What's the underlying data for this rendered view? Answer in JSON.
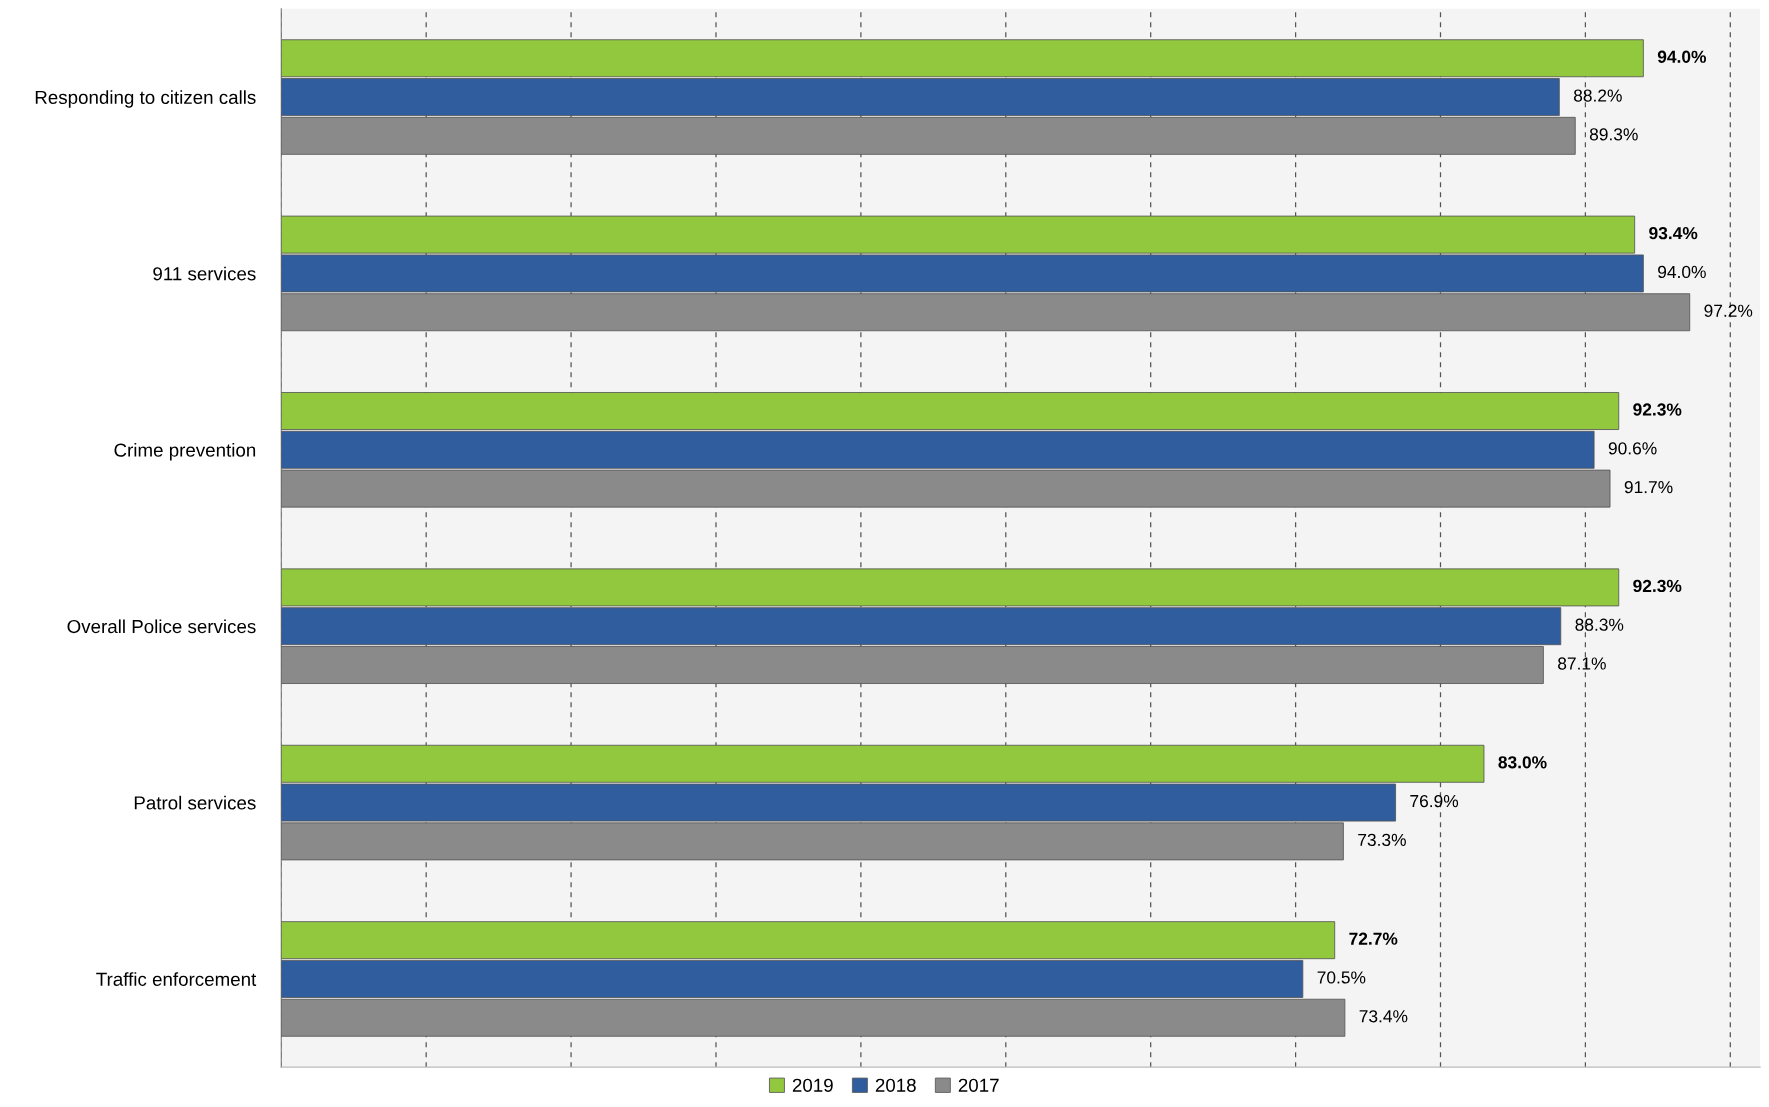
{
  "chart_data": {
    "type": "bar",
    "orientation": "horizontal",
    "categories": [
      "Responding to citizen calls",
      "911 services",
      "Crime prevention",
      "Overall Police services",
      "Patrol services",
      "Traffic enforcement"
    ],
    "series": [
      {
        "name": "2019",
        "color": "#92c83e",
        "values": [
          94.0,
          93.4,
          92.3,
          92.3,
          83.0,
          72.7
        ],
        "value_labels": [
          "94.0%",
          "93.4%",
          "92.3%",
          "92.3%",
          "83.0%",
          "72.7%"
        ]
      },
      {
        "name": "2018",
        "color": "#2f5d9e",
        "values": [
          88.2,
          94.0,
          90.6,
          88.3,
          76.9,
          70.5
        ],
        "value_labels": [
          "88.2%",
          "94.0%",
          "90.6%",
          "88.3%",
          "76.9%",
          "70.5%"
        ]
      },
      {
        "name": "2017",
        "color": "#8a8a8a",
        "values": [
          89.3,
          97.2,
          91.7,
          87.1,
          73.3,
          73.4
        ],
        "value_labels": [
          "89.3%",
          "97.2%",
          "91.7%",
          "87.1%",
          "73.3%",
          "73.4%"
        ]
      }
    ],
    "tick_labels": "y",
    "grid": "x",
    "legend": "bottom"
  }
}
